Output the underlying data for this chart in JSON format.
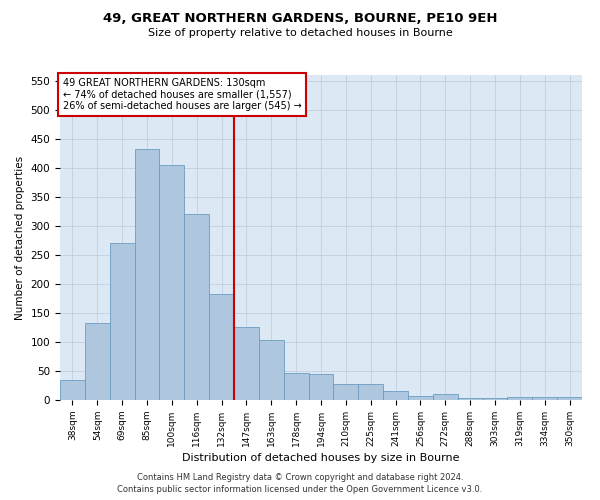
{
  "title1": "49, GREAT NORTHERN GARDENS, BOURNE, PE10 9EH",
  "title2": "Size of property relative to detached houses in Bourne",
  "xlabel": "Distribution of detached houses by size in Bourne",
  "ylabel": "Number of detached properties",
  "categories": [
    "38sqm",
    "54sqm",
    "69sqm",
    "85sqm",
    "100sqm",
    "116sqm",
    "132sqm",
    "147sqm",
    "163sqm",
    "178sqm",
    "194sqm",
    "210sqm",
    "225sqm",
    "241sqm",
    "256sqm",
    "272sqm",
    "288sqm",
    "303sqm",
    "319sqm",
    "334sqm",
    "350sqm"
  ],
  "values": [
    35,
    132,
    270,
    432,
    405,
    320,
    183,
    125,
    103,
    46,
    45,
    28,
    27,
    15,
    7,
    10,
    4,
    4,
    5,
    5,
    5
  ],
  "bar_color": "#aec6de",
  "bar_edge_color": "#6b9dc0",
  "property_label": "49 GREAT NORTHERN GARDENS: 130sqm",
  "annotation_line1": "← 74% of detached houses are smaller (1,557)",
  "annotation_line2": "26% of semi-detached houses are larger (545) →",
  "vline_color": "#cc0000",
  "vline_position": 6.5,
  "annotation_box_color": "#cc0000",
  "ylim": [
    0,
    560
  ],
  "yticks": [
    0,
    50,
    100,
    150,
    200,
    250,
    300,
    350,
    400,
    450,
    500,
    550
  ],
  "grid_color": "#c0d0e0",
  "background_color": "#dce8f4",
  "footnote1": "Contains HM Land Registry data © Crown copyright and database right 2024.",
  "footnote2": "Contains public sector information licensed under the Open Government Licence v3.0."
}
